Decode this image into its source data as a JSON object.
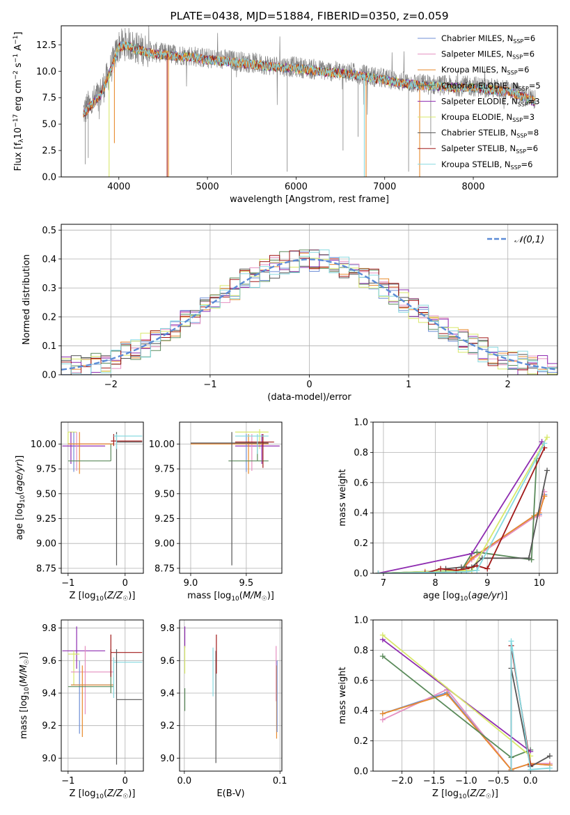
{
  "figure_title": "PLATE=0438, MJD=51884, FIBERID=0350, z=0.059",
  "colors": {
    "Chabrier MILES": "#6f8fd6",
    "Salpeter MILES": "#e58fc0",
    "Kroupa MILES": "#e88a2c",
    "Chabrier ELODIE": "#5a8a5a",
    "Salpeter ELODIE": "#8e2bb0",
    "Kroupa ELODIE": "#d8e86a",
    "Chabrier STELIB": "#555555",
    "Salpeter STELIB": "#a01818",
    "Kroupa STELIB": "#86d9e0",
    "data": "#808080",
    "normal": "#5b8bd6"
  },
  "chart_data": [
    {
      "id": "spectrum",
      "type": "line",
      "title": "PLATE=0438, MJD=51884, FIBERID=0350, z=0.059",
      "xlabel": "wavelength [Angstrom, rest frame]",
      "ylabel": "Flux [f_λ 10^-17 erg cm^-2 s^-1 A^-1]",
      "xlim": [
        3350,
        8950
      ],
      "ylim": [
        0,
        14.3
      ],
      "xticks": [
        4000,
        5000,
        6000,
        7000,
        8000
      ],
      "yticks": [
        0.0,
        2.5,
        5.0,
        7.5,
        10.0,
        12.5
      ],
      "grid": false,
      "legend_position": "top-right",
      "legend": [
        "Chabrier MILES, N_SSP=6",
        "Salpeter MILES, N_SSP=6",
        "Kroupa MILES, N_SSP=6",
        "Chabrier ELODIE, N_SSP=5",
        "Salpeter ELODIE, N_SSP=3",
        "Kroupa ELODIE, N_SSP=3",
        "Chabrier STELIB, N_SSP=8",
        "Salpeter STELIB, N_SSP=6",
        "Kroupa STELIB, N_SSP=6"
      ],
      "data_continuum": {
        "x": [
          3600,
          3700,
          3800,
          3900,
          4000,
          4100,
          4200,
          4400,
          4600,
          4800,
          5000,
          5200,
          5400,
          5600,
          5800,
          6000,
          6200,
          6400,
          6600,
          6800,
          7000,
          7200,
          7400,
          7600,
          7800,
          8000,
          8200,
          8400,
          8600,
          8700
        ],
        "y": [
          6.2,
          7.0,
          8.0,
          10.0,
          12.4,
          12.6,
          12.2,
          11.8,
          11.6,
          11.5,
          11.2,
          11.1,
          10.9,
          10.7,
          10.5,
          10.4,
          10.2,
          10.0,
          9.9,
          9.6,
          9.3,
          9.0,
          8.8,
          8.7,
          8.6,
          8.6,
          8.4,
          8.2,
          7.6,
          7.2
        ]
      }
    },
    {
      "id": "residuals",
      "type": "line",
      "xlabel": "(data-model)/error",
      "ylabel": "Normed distribution",
      "xlim": [
        -2.5,
        2.5
      ],
      "ylim": [
        0,
        0.52
      ],
      "xticks": [
        -2,
        -1,
        0,
        1,
        2
      ],
      "yticks": [
        0.0,
        0.1,
        0.2,
        0.3,
        0.4,
        0.5
      ],
      "grid": true,
      "legend_position": "top-right",
      "legend": [
        "𝒩(0,1)"
      ],
      "normal_curve": {
        "mean": 0,
        "sigma": 1
      }
    },
    {
      "id": "age_vs_Z",
      "type": "scatter",
      "xlabel": "Z [log10(Z/Z☉)]",
      "ylabel": "age  [log10(age/yr)]",
      "xlim": [
        -1.12,
        0.32
      ],
      "ylim": [
        8.7,
        10.22
      ],
      "xticks": [
        -1,
        0
      ],
      "yticks": [
        8.75,
        9.0,
        9.25,
        9.5,
        9.75,
        10.0
      ],
      "grid": true
    },
    {
      "id": "age_vs_mass",
      "type": "scatter",
      "xlabel": "mass [log10(M/M☉)]",
      "ylabel": "",
      "xlim": [
        8.9,
        9.82
      ],
      "ylim": [
        8.7,
        10.22
      ],
      "xticks": [
        9.0,
        9.5
      ],
      "yticks": [
        8.75,
        9.0,
        9.25,
        9.5,
        9.75,
        10.0
      ],
      "grid": true
    },
    {
      "id": "weight_vs_age",
      "type": "line",
      "xlabel": "age  [log10(age/yr)]",
      "ylabel": "mass weight",
      "xlim": [
        6.8,
        10.35
      ],
      "ylim": [
        0,
        1.0
      ],
      "xticks": [
        7,
        8,
        9,
        10
      ],
      "yticks": [
        0.0,
        0.2,
        0.4,
        0.6,
        0.8,
        1.0
      ],
      "grid": true,
      "series": [
        {
          "name": "Chabrier MILES",
          "x": [
            6.9,
            7.8,
            8.5,
            8.7,
            9.9,
            10.0,
            10.1
          ],
          "y": [
            0.0,
            0.01,
            0.02,
            0.1,
            0.38,
            0.39,
            0.52
          ]
        },
        {
          "name": "Salpeter MILES",
          "x": [
            6.9,
            7.8,
            8.5,
            8.7,
            9.9,
            10.0,
            10.1
          ],
          "y": [
            0.0,
            0.01,
            0.02,
            0.09,
            0.37,
            0.38,
            0.54
          ]
        },
        {
          "name": "Kroupa MILES",
          "x": [
            6.9,
            7.8,
            8.5,
            8.7,
            9.9,
            10.0,
            10.1
          ],
          "y": [
            0.0,
            0.01,
            0.02,
            0.1,
            0.38,
            0.4,
            0.51
          ]
        },
        {
          "name": "Chabrier ELODIE",
          "x": [
            6.9,
            8.5,
            8.7,
            8.8,
            9.85,
            9.95
          ],
          "y": [
            0.0,
            0.02,
            0.13,
            0.14,
            0.09,
            0.76
          ]
        },
        {
          "name": "Salpeter ELODIE",
          "x": [
            6.9,
            8.7,
            10.05
          ],
          "y": [
            0.0,
            0.13,
            0.87
          ]
        },
        {
          "name": "Kroupa ELODIE",
          "x": [
            6.9,
            8.7,
            10.15
          ],
          "y": [
            0.0,
            0.02,
            0.9
          ]
        },
        {
          "name": "Chabrier STELIB",
          "x": [
            8.2,
            8.5,
            8.7,
            8.9,
            9.8,
            10.15
          ],
          "y": [
            0.03,
            0.04,
            0.04,
            0.1,
            0.1,
            0.68
          ]
        },
        {
          "name": "Salpeter STELIB",
          "x": [
            7.8,
            8.1,
            8.4,
            8.6,
            8.8,
            9.0,
            10.1
          ],
          "y": [
            0.0,
            0.03,
            0.02,
            0.03,
            0.05,
            0.03,
            0.83
          ]
        },
        {
          "name": "Kroupa STELIB",
          "x": [
            6.9,
            8.6,
            8.8,
            10.1
          ],
          "y": [
            0.0,
            0.01,
            0.02,
            0.86
          ]
        }
      ]
    },
    {
      "id": "mass_vs_Z",
      "type": "scatter",
      "xlabel": "Z [log10(Z/Z☉)]",
      "ylabel": "mass [log10(M/M☉)]",
      "xlim": [
        -1.12,
        0.32
      ],
      "ylim": [
        8.92,
        9.85
      ],
      "xticks": [
        -1,
        0
      ],
      "yticks": [
        9.0,
        9.2,
        9.4,
        9.6,
        9.8
      ],
      "grid": true
    },
    {
      "id": "mass_vs_ebv",
      "type": "scatter",
      "xlabel": "E(B-V)",
      "ylabel": "",
      "xlim": [
        -0.005,
        0.102
      ],
      "ylim": [
        8.92,
        9.85
      ],
      "xticks": [
        0.0,
        0.1
      ],
      "yticks": [
        9.0,
        9.2,
        9.4,
        9.6,
        9.8
      ],
      "grid": true
    },
    {
      "id": "weight_vs_Z",
      "type": "line",
      "xlabel": "Z [log10(Z/Z☉)]",
      "ylabel": "mass weight",
      "xlim": [
        -2.45,
        0.42
      ],
      "ylim": [
        0,
        1.0
      ],
      "xticks": [
        -2.0,
        -1.5,
        -1.0,
        -0.5,
        0.0
      ],
      "yticks": [
        0.0,
        0.2,
        0.4,
        0.6,
        0.8,
        1.0
      ],
      "grid": true,
      "series": [
        {
          "name": "Chabrier MILES",
          "x": [
            -2.3,
            -1.3,
            -0.3,
            0.0,
            0.3
          ],
          "y": [
            0.38,
            0.52,
            0.01,
            0.05,
            0.04
          ]
        },
        {
          "name": "Salpeter MILES",
          "x": [
            -2.3,
            -1.3,
            -0.3,
            0.0,
            0.3
          ],
          "y": [
            0.34,
            0.54,
            0.01,
            0.05,
            0.05
          ]
        },
        {
          "name": "Kroupa MILES",
          "x": [
            -2.3,
            -1.3,
            -0.3,
            0.0,
            0.3
          ],
          "y": [
            0.38,
            0.51,
            0.01,
            0.05,
            0.04
          ]
        },
        {
          "name": "Chabrier ELODIE",
          "x": [
            -2.3,
            -0.3,
            0.0
          ],
          "y": [
            0.76,
            0.09,
            0.14
          ]
        },
        {
          "name": "Salpeter ELODIE",
          "x": [
            -2.3,
            0.0
          ],
          "y": [
            0.87,
            0.13
          ]
        },
        {
          "name": "Kroupa ELODIE",
          "x": [
            -2.3,
            0.0
          ],
          "y": [
            0.9,
            0.1
          ]
        },
        {
          "name": "Chabrier STELIB",
          "x": [
            -0.3,
            -0.3,
            0.0,
            0.3
          ],
          "y": [
            0.0,
            0.68,
            0.03,
            0.1
          ]
        },
        {
          "name": "Salpeter STELIB",
          "x": [
            -0.3,
            -0.3,
            0.0
          ],
          "y": [
            0.0,
            0.83,
            0.04
          ]
        },
        {
          "name": "Kroupa STELIB",
          "x": [
            -0.3,
            -0.3,
            0.0,
            0.3
          ],
          "y": [
            0.0,
            0.86,
            0.01,
            0.02
          ]
        }
      ]
    }
  ]
}
